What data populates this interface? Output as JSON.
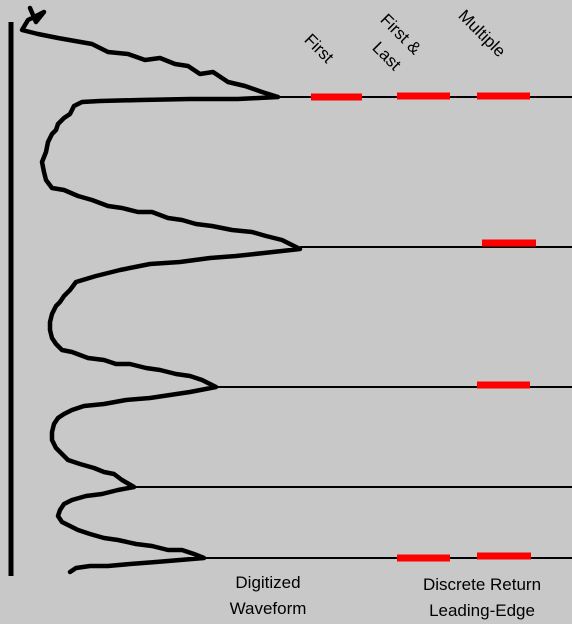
{
  "column_headers": {
    "first": "First",
    "first_last_line1": "First &",
    "first_last_line2": "Last",
    "multiple": "Multiple"
  },
  "footer": {
    "waveform_line1": "Digitized",
    "waveform_line2": "Waveform",
    "discrete_line1": "Discrete Return",
    "discrete_line2": "Leading-Edge"
  },
  "colors": {
    "background": "#c8c8c8",
    "stroke": "#000000",
    "return_marker": "#ff0000"
  },
  "returns": [
    {
      "peak": 1,
      "first": true,
      "first_and_last": true,
      "multiple": true
    },
    {
      "peak": 2,
      "first": false,
      "first_and_last": false,
      "multiple": true
    },
    {
      "peak": 3,
      "first": false,
      "first_and_last": false,
      "multiple": true
    },
    {
      "peak": 4,
      "first": false,
      "first_and_last": false,
      "multiple": false
    },
    {
      "peak": 5,
      "first": false,
      "first_and_last": true,
      "multiple": true
    }
  ]
}
